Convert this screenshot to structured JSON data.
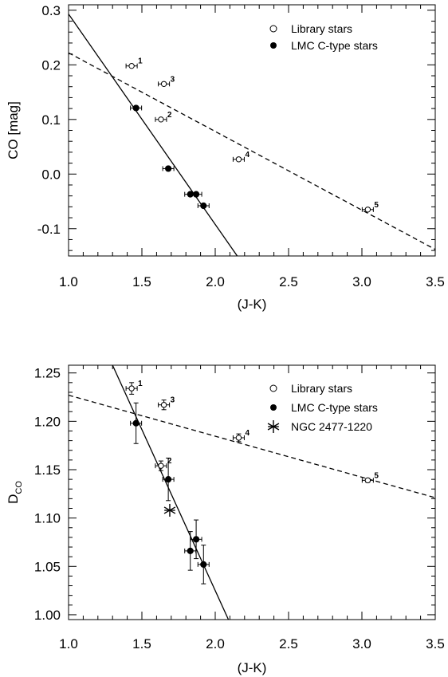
{
  "chart_data": [
    {
      "type": "scatter",
      "xlabel": "(J-K)",
      "ylabel": "CO [mag]",
      "xlim": [
        1.0,
        3.5
      ],
      "ylim": [
        -0.15,
        0.31
      ],
      "xticks": [
        "1.0",
        "1.5",
        "2.0",
        "2.5",
        "3.0",
        "3.5"
      ],
      "yticks": [
        "-0.1",
        "0.0",
        "0.1",
        "0.2",
        "0.3"
      ],
      "grid": false,
      "legend_position": "top-right",
      "series": [
        {
          "name": "Library stars",
          "marker": "open-circle",
          "points": [
            {
              "x": 1.43,
              "y": 0.198,
              "label": "1"
            },
            {
              "x": 1.65,
              "y": 0.165,
              "label": "3"
            },
            {
              "x": 1.63,
              "y": 0.1,
              "label": "2"
            },
            {
              "x": 2.16,
              "y": 0.027,
              "label": "4"
            },
            {
              "x": 3.04,
              "y": -0.065,
              "label": "5"
            }
          ]
        },
        {
          "name": "LMC C-type stars",
          "marker": "filled-circle",
          "points": [
            {
              "x": 1.46,
              "y": 0.121
            },
            {
              "x": 1.68,
              "y": 0.01
            },
            {
              "x": 1.83,
              "y": -0.037
            },
            {
              "x": 1.87,
              "y": -0.037
            },
            {
              "x": 1.92,
              "y": -0.058
            }
          ]
        }
      ],
      "fit_lines": [
        {
          "style": "solid",
          "x": [
            1.0,
            2.15
          ],
          "y": [
            0.293,
            -0.15
          ]
        },
        {
          "style": "dashed",
          "x": [
            1.0,
            3.5
          ],
          "y": [
            0.222,
            -0.138
          ]
        }
      ]
    },
    {
      "type": "scatter",
      "xlabel": "(J-K)",
      "ylabel": "D",
      "ylabel_subscript": "CO",
      "xlim": [
        1.0,
        3.5
      ],
      "ylim": [
        0.995,
        1.258
      ],
      "xticks": [
        "1.0",
        "1.5",
        "2.0",
        "2.5",
        "3.0",
        "3.5"
      ],
      "yticks": [
        "1.00",
        "1.05",
        "1.10",
        "1.15",
        "1.20",
        "1.25"
      ],
      "grid": false,
      "legend_position": "top-right",
      "series": [
        {
          "name": "Library stars",
          "marker": "open-circle",
          "points": [
            {
              "x": 1.43,
              "y": 1.234,
              "yerr": 0.006,
              "label": "1"
            },
            {
              "x": 1.65,
              "y": 1.217,
              "yerr": 0.005,
              "label": "3"
            },
            {
              "x": 1.63,
              "y": 1.154,
              "yerr": 0.005,
              "label": "2"
            },
            {
              "x": 2.16,
              "y": 1.183,
              "yerr": 0.004,
              "label": "4"
            },
            {
              "x": 3.04,
              "y": 1.139,
              "yerr": 0.002,
              "label": "5"
            }
          ]
        },
        {
          "name": "LMC C-type stars",
          "marker": "filled-circle",
          "points": [
            {
              "x": 1.46,
              "y": 1.198,
              "yerr": 0.021
            },
            {
              "x": 1.68,
              "y": 1.14,
              "yerr": 0.022
            },
            {
              "x": 1.83,
              "y": 1.066,
              "yerr": 0.02
            },
            {
              "x": 1.87,
              "y": 1.078,
              "yerr": 0.02
            },
            {
              "x": 1.92,
              "y": 1.052,
              "yerr": 0.02
            }
          ]
        },
        {
          "name": "NGC 2477-1220",
          "marker": "asterisk",
          "points": [
            {
              "x": 1.69,
              "y": 1.108
            }
          ]
        }
      ],
      "fit_lines": [
        {
          "style": "solid",
          "x": [
            1.3,
            2.09
          ],
          "y": [
            1.258,
            0.995
          ]
        },
        {
          "style": "dashed",
          "x": [
            1.0,
            3.5
          ],
          "y": [
            1.227,
            1.121
          ]
        }
      ]
    }
  ]
}
